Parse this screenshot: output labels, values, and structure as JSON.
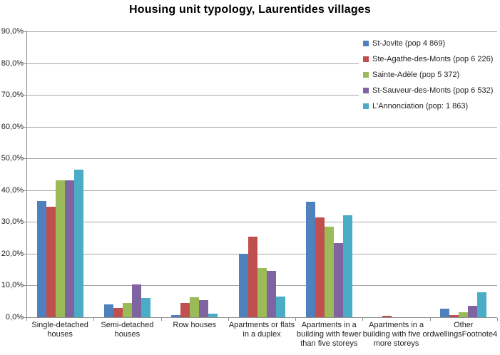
{
  "chart_data": {
    "type": "bar",
    "title": "Housing unit typology, Laurentides villages",
    "categories": [
      "Single-detached\nhouses",
      "Semi-detached\nhouses",
      "Row houses",
      "Apartments or flats\nin a duplex",
      "Apartments in a\nbuilding with fewer\nthan five storeys",
      "Apartments in a\nbuilding with five or\nmore storeys",
      "Other\ndwellingsFootnote4"
    ],
    "series": [
      {
        "name": "St-Jovite (pop 4 869)",
        "color": "#4F81BD",
        "values": [
          36.6,
          4.1,
          0.6,
          19.9,
          36.3,
          0.0,
          2.8
        ]
      },
      {
        "name": "Ste-Agathe-des-Monts (pop 6 226)",
        "color": "#C0504D",
        "values": [
          34.8,
          3.0,
          4.6,
          25.4,
          31.5,
          0.4,
          0.7
        ]
      },
      {
        "name": "Sainte-Adèle (pop 5 372)",
        "color": "#9BBB59",
        "values": [
          43.2,
          4.6,
          6.4,
          15.6,
          28.4,
          0.0,
          1.5
        ]
      },
      {
        "name": "St-Sauveur-des-Monts (pop 6 532)",
        "color": "#8064A2",
        "values": [
          43.2,
          10.3,
          5.4,
          14.7,
          23.4,
          0.0,
          3.5
        ]
      },
      {
        "name": "L'Annonciation (pop: 1 863)",
        "color": "#4BACC6",
        "values": [
          46.5,
          6.0,
          1.2,
          6.6,
          32.1,
          0.0,
          7.8
        ]
      }
    ],
    "ylim": [
      0,
      90
    ],
    "ytick_step": 10,
    "ytick_labels": [
      "0,0%",
      "10,0%",
      "20,0%",
      "30,0%",
      "40,0%",
      "50,0%",
      "60,0%",
      "70,0%",
      "80,0%",
      "90,0%"
    ],
    "grid": true,
    "legend_position": "top-right",
    "colors": {
      "gridline": "#a8a8a8",
      "axis": "#8e8e8e",
      "text": "#1f1f1f",
      "background": "#ffffff"
    }
  }
}
